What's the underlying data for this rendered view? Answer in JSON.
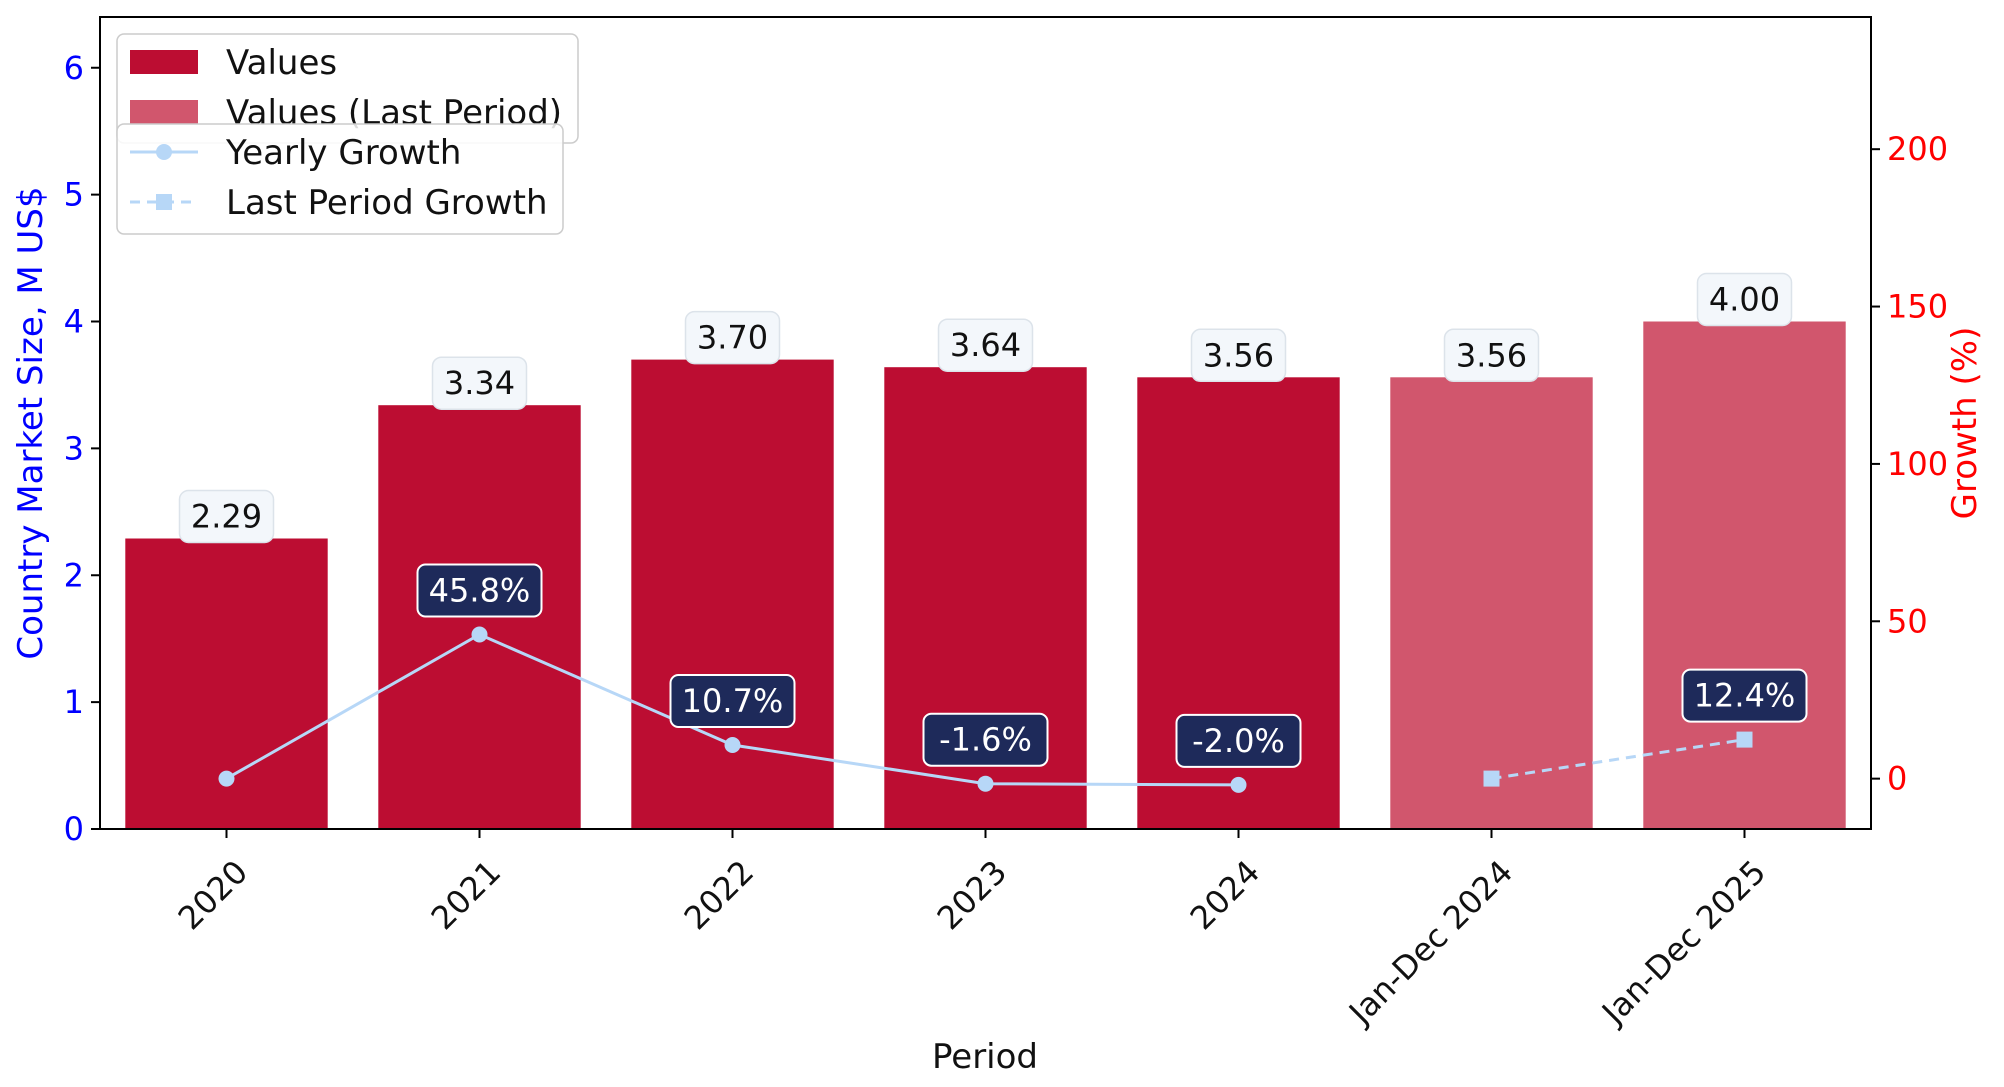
{
  "chart_data": {
    "type": "bar",
    "categories": [
      "2020",
      "2021",
      "2022",
      "2023",
      "2024",
      "Jan-Dec 2024",
      "Jan-Dec 2025"
    ],
    "series": [
      {
        "name": "Values",
        "type": "bar",
        "axis": "left",
        "color": "#BC0D32",
        "values": [
          2.29,
          3.34,
          3.7,
          3.64,
          3.56,
          null,
          null
        ],
        "labels": [
          "2.29",
          "3.34",
          "3.70",
          "3.64",
          "3.56",
          "",
          ""
        ]
      },
      {
        "name": "Values (Last Period)",
        "type": "bar",
        "axis": "left",
        "color": "#D1566D",
        "values": [
          null,
          null,
          null,
          null,
          null,
          3.56,
          4.0
        ],
        "labels": [
          "",
          "",
          "",
          "",
          "",
          "3.56",
          "4.00"
        ]
      },
      {
        "name": "Yearly Growth",
        "type": "line",
        "axis": "right",
        "color": "#B7D7F7",
        "marker": "circle",
        "linestyle": "solid",
        "values": [
          0,
          45.8,
          10.7,
          -1.6,
          -2.0,
          null,
          null
        ],
        "labels": [
          "",
          "45.8%",
          "10.7%",
          "-1.6%",
          "-2.0%",
          "",
          ""
        ]
      },
      {
        "name": "Last Period Growth",
        "type": "line",
        "axis": "right",
        "color": "#B7D7F7",
        "marker": "square",
        "linestyle": "dashed",
        "values": [
          null,
          null,
          null,
          null,
          null,
          0,
          12.4
        ],
        "labels": [
          "",
          "",
          "",
          "",
          "",
          "",
          "12.4%"
        ]
      }
    ],
    "xlabel": "Period",
    "ylabel": "Country Market Size, M US$",
    "y2label": "Growth (%)",
    "ylim": [
      0,
      6.4
    ],
    "y2lim": [
      -16,
      242
    ],
    "yticks": [
      0,
      1,
      2,
      3,
      4,
      5,
      6
    ],
    "y2ticks": [
      0,
      50,
      100,
      150,
      200
    ],
    "grid": false,
    "legend": {
      "placement": "top-left",
      "entries": [
        "Values",
        "Values (Last Period)",
        "Yearly Growth",
        "Last Period Growth"
      ]
    },
    "colors": {
      "left_axis": "#0000FF",
      "right_axis": "#FF0000",
      "value_label_bg": "#F3F7FB",
      "growth_label_bg": "#1E2A5A"
    }
  }
}
